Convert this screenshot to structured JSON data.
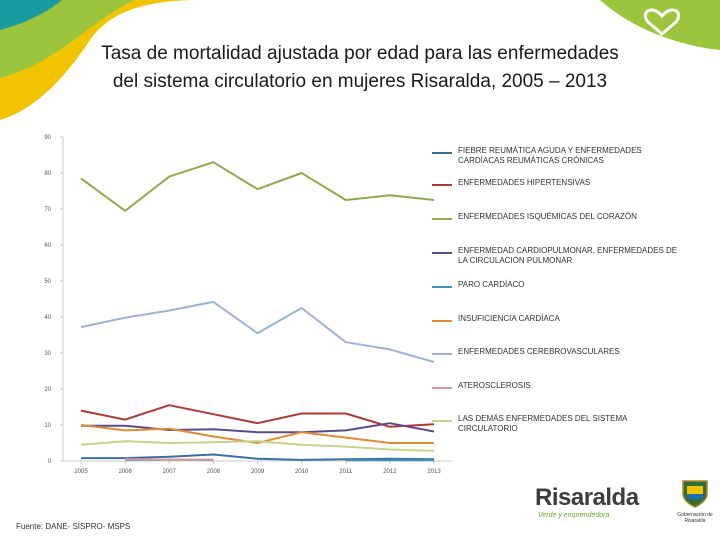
{
  "title_line1": "Tasa de mortalidad ajustada por edad para las enfermedades",
  "title_line2": "del sistema circulatorio en mujeres Risaralda, 2005 – 2013",
  "source": "Fuente: DANE- SISPRO- MSPS",
  "brand": {
    "name": "Risaralda",
    "tagline": "Verde y emprendedora",
    "seal_caption": "Gobernación de Risaralda"
  },
  "colors": {
    "deco_green": "#9cc43c",
    "deco_yellow": "#f2c400",
    "deco_teal": "#1b9aa0",
    "brand_green": "#6aa32e"
  },
  "chart_data": {
    "type": "line",
    "title": "Tasa de mortalidad ajustada por edad para las enfermedades del sistema circulatorio en mujeres Risaralda, 2005 – 2013",
    "xlabel": "",
    "ylabel": "",
    "ylim": [
      0,
      90
    ],
    "yticks": [
      0,
      10,
      20,
      30,
      40,
      50,
      60,
      70,
      80,
      90
    ],
    "categories": [
      "2005",
      "2006",
      "2007",
      "2008",
      "2009",
      "2010",
      "2011",
      "2012",
      "2013"
    ],
    "legend_position": "right",
    "series": [
      {
        "name": "FIEBRE REUMÁTICA AGUDA Y ENFERMEDADES CARDÍACAS REUMÁTICAS CRÓNICAS",
        "color": "#3b6ea5",
        "values": [
          0.8,
          0.8,
          1.2,
          1.8,
          0.6,
          0.3,
          0.5,
          0.6,
          0.5
        ]
      },
      {
        "name": "ENFERMEDADES HIPERTENSIVAS",
        "color": "#b03a36",
        "values": [
          14,
          11.5,
          15.5,
          13,
          10.5,
          13.2,
          13.2,
          9.5,
          10.2
        ]
      },
      {
        "name": "ENFERMEDADES ISQUÉMICAS DEL CORAZÓN",
        "color": "#8faa4c",
        "values": [
          78.5,
          69.5,
          79,
          83,
          75.5,
          80,
          72.5,
          73.8,
          72.5
        ]
      },
      {
        "name": "ENFERMEDAD CARDIOPULMONAR, ENFERMEDADES DE LA CIRCULACIÓN PULMONAR",
        "color": "#5c4a8a",
        "values": [
          9.8,
          9.8,
          8.6,
          8.8,
          8,
          8,
          8.5,
          10.5,
          8.2
        ]
      },
      {
        "name": "PARO CARDÍACO",
        "color": "#3f92b8",
        "values": [
          null,
          0.3,
          0.4,
          0.3,
          null,
          null,
          0.2,
          0.2,
          0.2
        ]
      },
      {
        "name": "INSUFICIENCIA CARDÍACA",
        "color": "#e08b3a",
        "values": [
          10,
          8.5,
          9,
          6.8,
          5,
          8,
          6.5,
          5,
          5
        ]
      },
      {
        "name": "ENFERMEDADES CEREBROVASCULARES",
        "color": "#9db3d6",
        "values": [
          37.2,
          39.8,
          41.8,
          44.2,
          35.5,
          42.5,
          33,
          31,
          27.5
        ]
      },
      {
        "name": "ATEROSCLEROSIS",
        "color": "#d89a98",
        "values": [
          null,
          0.5,
          0.4,
          0.4,
          null,
          null,
          null,
          null,
          null
        ]
      },
      {
        "name": "LAS DEMÁS ENFERMEDADES DEL SISTEMA CIRCULATORIO",
        "color": "#c5d38a",
        "values": [
          4.5,
          5.5,
          5,
          5.2,
          5.5,
          4.5,
          4,
          3.2,
          2.8
        ]
      }
    ]
  }
}
